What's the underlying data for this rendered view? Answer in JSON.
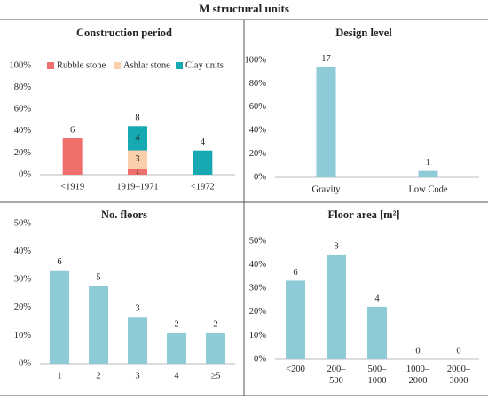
{
  "title": "M structural units",
  "chart_data": [
    {
      "type": "stacked-bar",
      "title": "Construction period",
      "categories": [
        "<1919",
        "1919–1971",
        "<1972"
      ],
      "series": [
        {
          "name": "Rubble stone",
          "color": "#ef6f6c",
          "values": [
            33.3,
            5.6,
            null
          ],
          "counts": [
            null,
            1,
            null
          ]
        },
        {
          "name": "Ashlar stone",
          "color": "#f9d0ab",
          "values": [
            null,
            16.7,
            null
          ],
          "counts": [
            null,
            3,
            null
          ]
        },
        {
          "name": "Clay units",
          "color": "#17a9b1",
          "values": [
            null,
            22.2,
            22.2
          ],
          "counts": [
            null,
            4,
            null
          ]
        }
      ],
      "total_counts": [
        6,
        8,
        4
      ],
      "ylim": [
        0,
        100
      ],
      "yticks": [
        {
          "value": 0,
          "label": "0%"
        },
        {
          "value": 20,
          "label": "20%"
        },
        {
          "value": 40,
          "label": "40%"
        },
        {
          "value": 60,
          "label": "60%"
        },
        {
          "value": 80,
          "label": "80%"
        },
        {
          "value": 100,
          "label": "100%"
        }
      ],
      "legend": "top-left"
    },
    {
      "type": "bar",
      "title": "Design level",
      "categories": [
        "Gravity",
        "Low Code"
      ],
      "values": [
        94.4,
        5.6
      ],
      "counts": [
        17,
        1
      ],
      "color": "#8ecbd6",
      "ylim": [
        0,
        100
      ],
      "yticks": [
        {
          "value": 0,
          "label": "0%"
        },
        {
          "value": 20,
          "label": "20%"
        },
        {
          "value": 40,
          "label": "40%"
        },
        {
          "value": 60,
          "label": "60%"
        },
        {
          "value": 80,
          "label": "80%"
        },
        {
          "value": 100,
          "label": "100%"
        }
      ]
    },
    {
      "type": "bar",
      "title": "No. floors",
      "categories": [
        "1",
        "2",
        "3",
        "4",
        "≥5"
      ],
      "values": [
        33.3,
        27.8,
        16.7,
        11.1,
        11.1
      ],
      "counts": [
        6,
        5,
        3,
        2,
        2
      ],
      "color": "#8ecbd6",
      "ylim": [
        0,
        50
      ],
      "yticks": [
        {
          "value": 0,
          "label": "0%"
        },
        {
          "value": 10,
          "label": "10%"
        },
        {
          "value": 20,
          "label": "20%"
        },
        {
          "value": 30,
          "label": "30%"
        },
        {
          "value": 40,
          "label": "40%"
        },
        {
          "value": 50,
          "label": "50%"
        }
      ]
    },
    {
      "type": "bar",
      "title": "Floor area [m²]",
      "categories": [
        [
          "<200"
        ],
        [
          "200–",
          "500"
        ],
        [
          "500–",
          "1000"
        ],
        [
          "1000–",
          "2000"
        ],
        [
          "2000–",
          "3000"
        ]
      ],
      "values": [
        33.3,
        44.4,
        22.2,
        0,
        0
      ],
      "counts": [
        6,
        8,
        4,
        0,
        0
      ],
      "color": "#8ecbd6",
      "ylim": [
        0,
        50
      ],
      "yticks": [
        {
          "value": 0,
          "label": "0%"
        },
        {
          "value": 10,
          "label": "10%"
        },
        {
          "value": 20,
          "label": "20%"
        },
        {
          "value": 30,
          "label": "30%"
        },
        {
          "value": 40,
          "label": "40%"
        },
        {
          "value": 50,
          "label": "50%"
        }
      ]
    }
  ]
}
